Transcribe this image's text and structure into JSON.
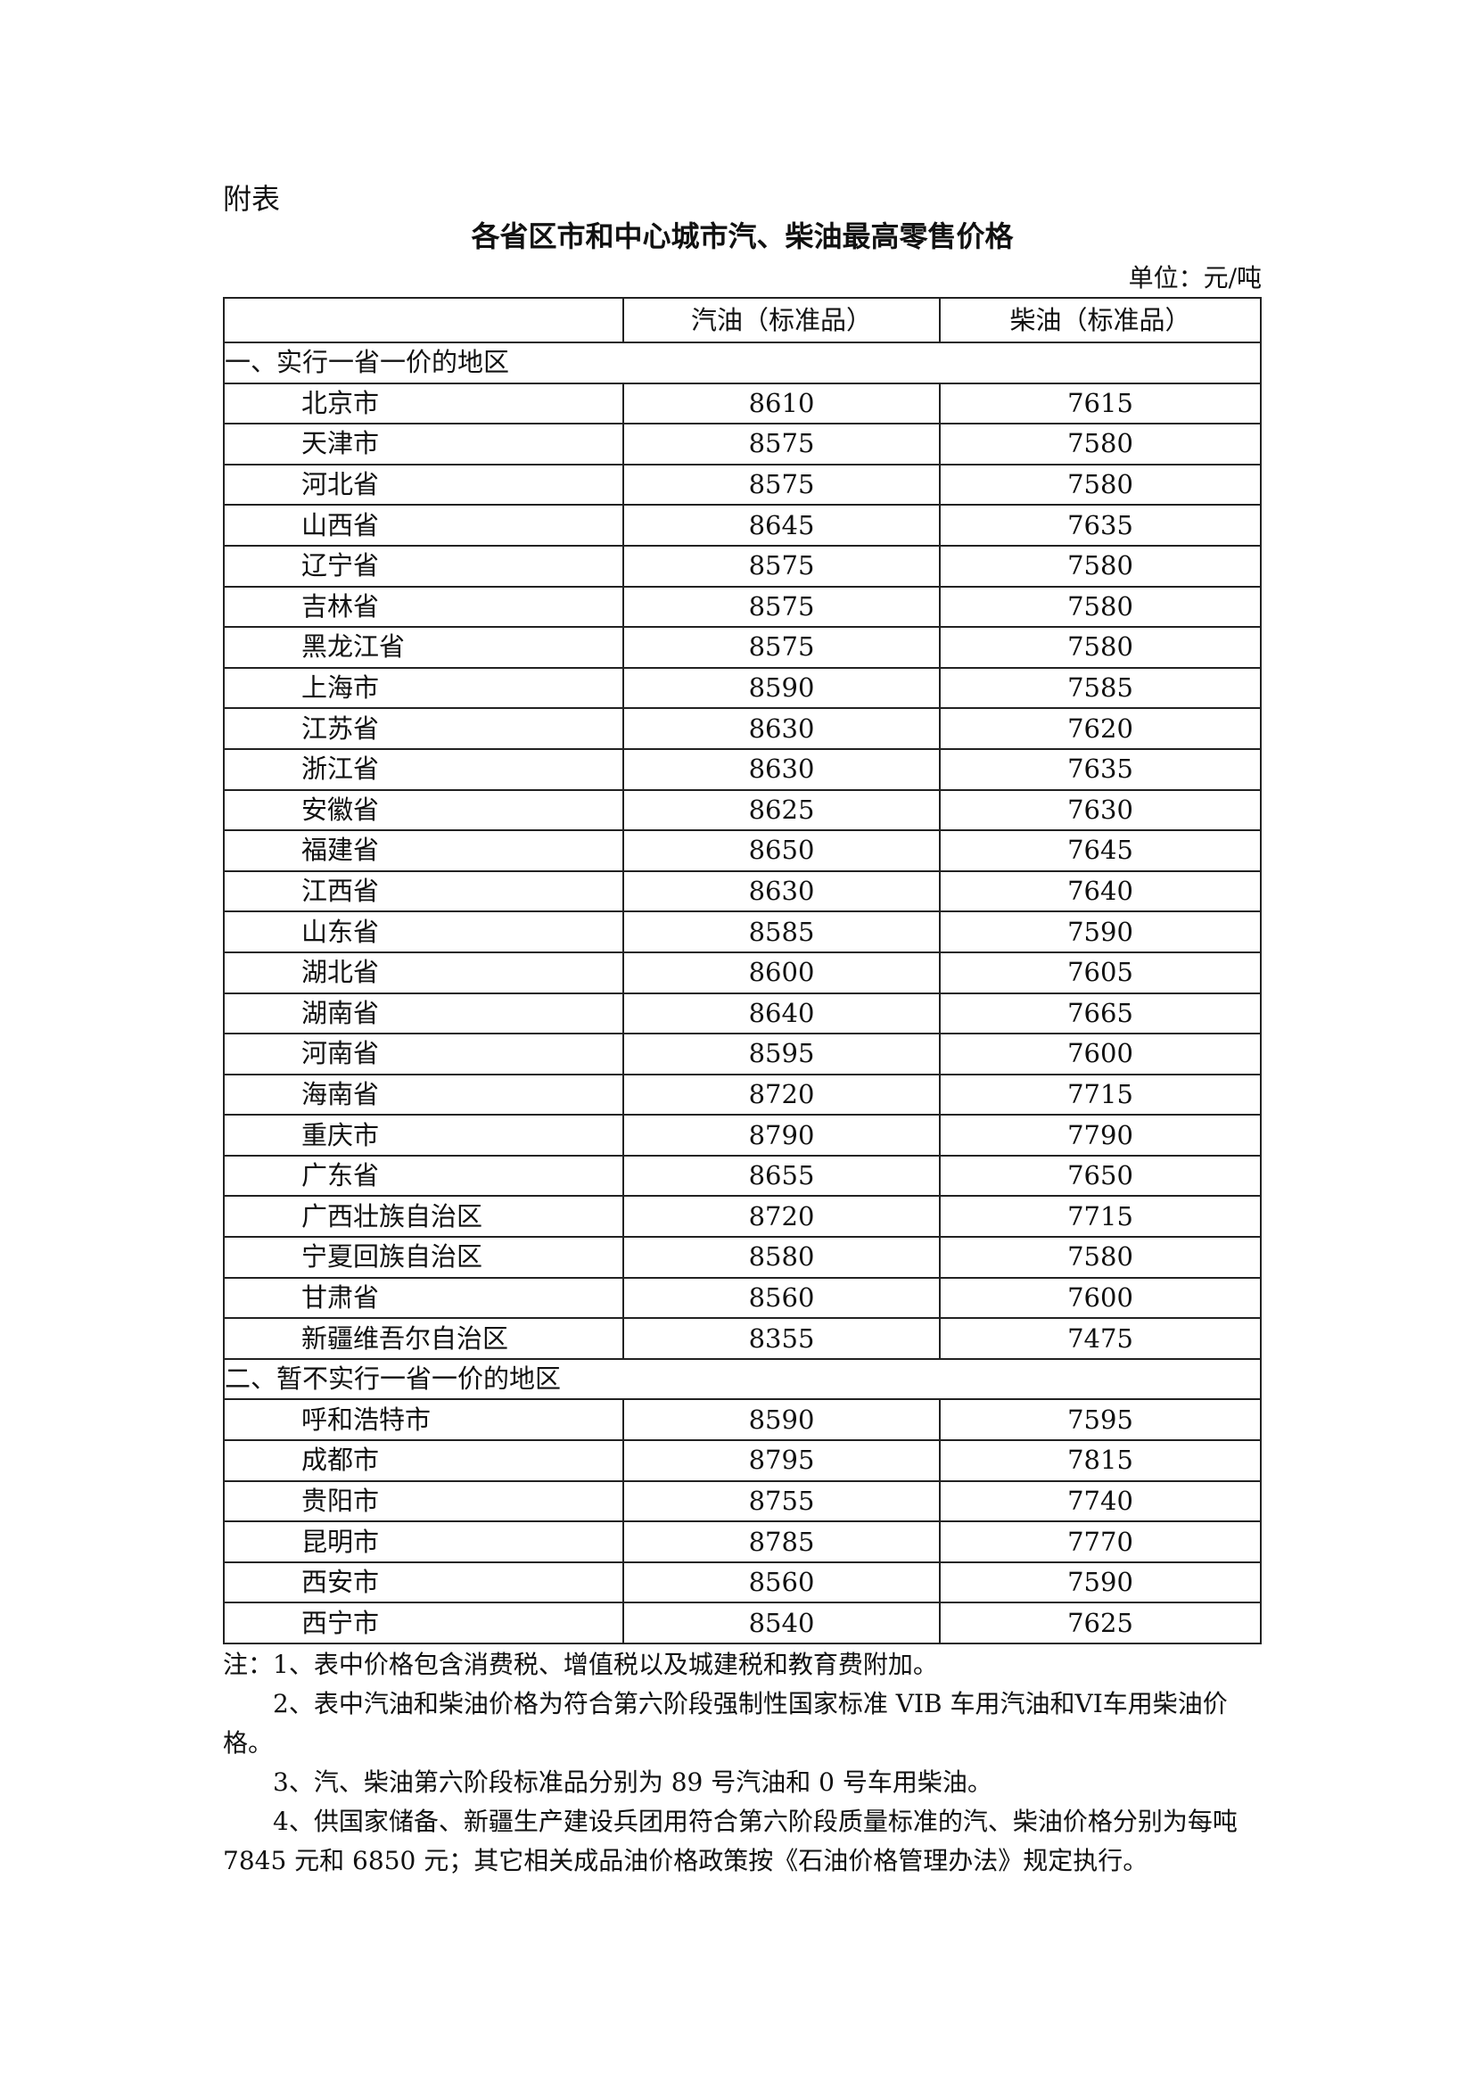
{
  "appendix_label": "附表",
  "title": "各省区市和中心城市汽、柴油最高零售价格",
  "unit": "单位：元/吨",
  "table": {
    "headers": [
      "",
      "汽油（标准品）",
      "柴油（标准品）"
    ],
    "sections": [
      {
        "label": "一、实行一省一价的地区",
        "rows": [
          [
            "北京市",
            "8610",
            "7615"
          ],
          [
            "天津市",
            "8575",
            "7580"
          ],
          [
            "河北省",
            "8575",
            "7580"
          ],
          [
            "山西省",
            "8645",
            "7635"
          ],
          [
            "辽宁省",
            "8575",
            "7580"
          ],
          [
            "吉林省",
            "8575",
            "7580"
          ],
          [
            "黑龙江省",
            "8575",
            "7580"
          ],
          [
            "上海市",
            "8590",
            "7585"
          ],
          [
            "江苏省",
            "8630",
            "7620"
          ],
          [
            "浙江省",
            "8630",
            "7635"
          ],
          [
            "安徽省",
            "8625",
            "7630"
          ],
          [
            "福建省",
            "8650",
            "7645"
          ],
          [
            "江西省",
            "8630",
            "7640"
          ],
          [
            "山东省",
            "8585",
            "7590"
          ],
          [
            "湖北省",
            "8600",
            "7605"
          ],
          [
            "湖南省",
            "8640",
            "7665"
          ],
          [
            "河南省",
            "8595",
            "7600"
          ],
          [
            "海南省",
            "8720",
            "7715"
          ],
          [
            "重庆市",
            "8790",
            "7790"
          ],
          [
            "广东省",
            "8655",
            "7650"
          ],
          [
            "广西壮族自治区",
            "8720",
            "7715"
          ],
          [
            "宁夏回族自治区",
            "8580",
            "7580"
          ],
          [
            "甘肃省",
            "8560",
            "7600"
          ],
          [
            "新疆维吾尔自治区",
            "8355",
            "7475"
          ]
        ]
      },
      {
        "label": "二、暂不实行一省一价的地区",
        "rows": [
          [
            "呼和浩特市",
            "8590",
            "7595"
          ],
          [
            "成都市",
            "8795",
            "7815"
          ],
          [
            "贵阳市",
            "8755",
            "7740"
          ],
          [
            "昆明市",
            "8785",
            "7770"
          ],
          [
            "西安市",
            "8560",
            "7590"
          ],
          [
            "西宁市",
            "8540",
            "7625"
          ]
        ]
      }
    ]
  },
  "notes": [
    "注：1、表中价格包含消费税、增值税以及城建税和教育费附加。",
    "2、表中汽油和柴油价格为符合第六阶段强制性国家标准 VIB 车用汽油和VI车用柴油价格。",
    "3、汽、柴油第六阶段标准品分别为 89 号汽油和 0 号车用柴油。",
    "4、供国家储备、新疆生产建设兵团用符合第六阶段质量标准的汽、柴油价格分别为每吨 7845 元和 6850 元；其它相关成品油价格政策按《石油价格管理办法》规定执行。"
  ]
}
